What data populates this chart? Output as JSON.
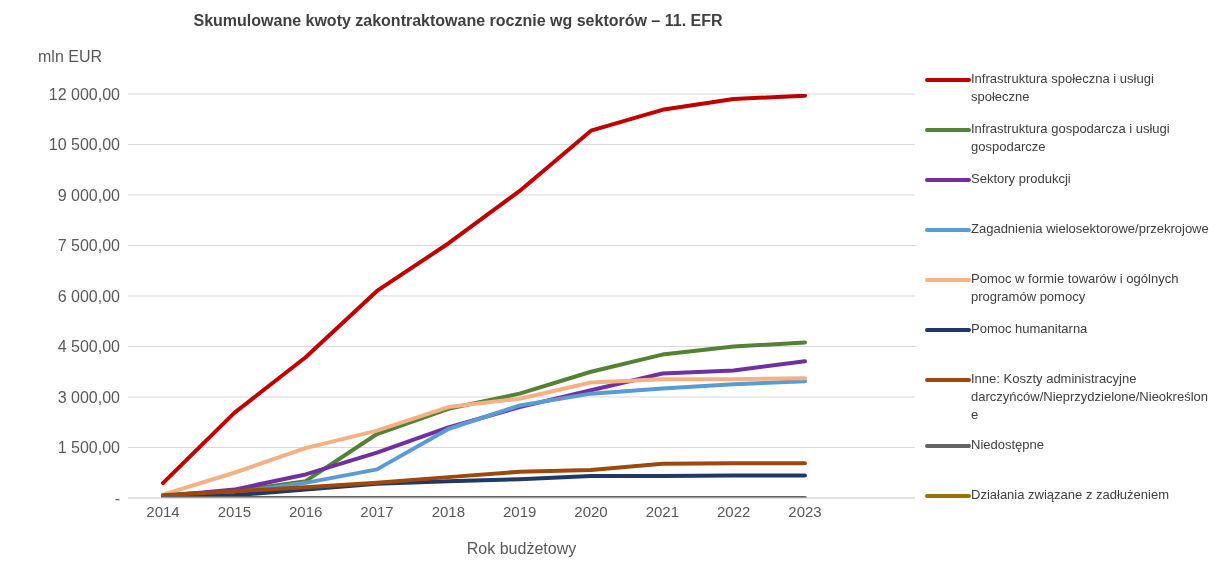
{
  "chart_data": {
    "type": "line",
    "title": "Skumulowane kwoty zakontraktowane rocznie wg sektorów – 11. EFR",
    "ylabel": "mln EUR",
    "xlabel": "Rok budżetowy",
    "categories": [
      "2014",
      "2015",
      "2016",
      "2017",
      "2018",
      "2019",
      "2020",
      "2021",
      "2022",
      "2023"
    ],
    "ylim": [
      0,
      12000
    ],
    "yticks": [
      {
        "value": 0,
        "label": "-"
      },
      {
        "value": 1500,
        "label": "1 500,00"
      },
      {
        "value": 3000,
        "label": "3 000,00"
      },
      {
        "value": 4500,
        "label": "4 500,00"
      },
      {
        "value": 6000,
        "label": "6 000,00"
      },
      {
        "value": 7500,
        "label": "7 500,00"
      },
      {
        "value": 9000,
        "label": "9 000,00"
      },
      {
        "value": 10500,
        "label": "10 500,00"
      },
      {
        "value": 12000,
        "label": "12 000,00"
      }
    ],
    "grid": "y",
    "legend": "right",
    "marker": "none",
    "line_style": "solid",
    "series": [
      {
        "name": "Infrastruktura społeczna i usługi społeczne",
        "color": "#c00000",
        "values": [
          440,
          2530,
          4180,
          6150,
          7560,
          9120,
          10910,
          11530,
          11850,
          11950
        ]
      },
      {
        "name": "Infrastruktura gospodarcza i usługi gospodarcze",
        "color": "#548235",
        "values": [
          90,
          200,
          500,
          1900,
          2650,
          3100,
          3750,
          4260,
          4500,
          4620
        ]
      },
      {
        "name": "Sektory produkcji",
        "color": "#7030a0",
        "values": [
          50,
          250,
          700,
          1350,
          2100,
          2700,
          3200,
          3700,
          3790,
          4060
        ]
      },
      {
        "name": "Zagadnienia wielosektorowe/przekrojowe",
        "color": "#5b9bd5",
        "values": [
          50,
          150,
          450,
          850,
          2050,
          2750,
          3100,
          3250,
          3380,
          3470
        ]
      },
      {
        "name": "Pomoc w formie towarów i ogólnych programów pomocy",
        "color": "#f4b183",
        "values": [
          100,
          750,
          1480,
          2000,
          2700,
          2950,
          3430,
          3530,
          3530,
          3560
        ]
      },
      {
        "name": "Pomoc humanitarna",
        "color": "#203864",
        "values": [
          30,
          80,
          250,
          420,
          500,
          560,
          650,
          650,
          670,
          670
        ]
      },
      {
        "name": "Inne: Koszty administracyjne darczyńców/Nieprzydzielone/Nieokreślone",
        "color": "#9e480e",
        "values": [
          80,
          200,
          320,
          450,
          620,
          780,
          830,
          1020,
          1030,
          1030
        ]
      },
      {
        "name": "Niedostępne",
        "color": "#636363",
        "values": [
          0,
          0,
          0,
          0,
          0,
          0,
          0,
          0,
          0,
          0
        ]
      },
      {
        "name": "Działania związane z zadłużeniem",
        "color": "#997300",
        "values": [
          null,
          null,
          null,
          null,
          null,
          null,
          null,
          null,
          null,
          null
        ]
      }
    ]
  }
}
